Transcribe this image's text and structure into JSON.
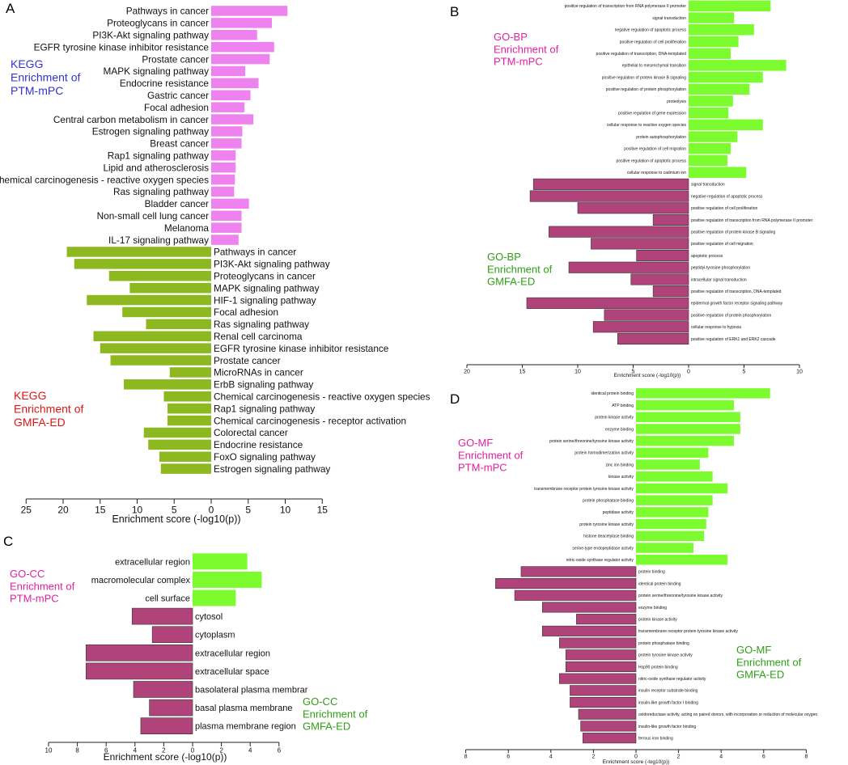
{
  "colors": {
    "kegg_pos": "#ee82ee",
    "kegg_neg": "#8db820",
    "go_pos": "#7cfc2e",
    "go_neg": "#b0447a",
    "label_blue": "#3333cc",
    "label_red": "#e01515",
    "label_magenta": "#e020a0",
    "label_green": "#2f9e14"
  },
  "chart_data": [
    {
      "panel": "A",
      "type": "bar",
      "orientation": "horizontal-diverging",
      "xlabel": "Enrichment score (-log10(p))",
      "xticks": [
        "25",
        "20",
        "15",
        "10",
        "5",
        "0",
        "5",
        "10",
        "15"
      ],
      "xlim": [
        -25,
        15
      ],
      "groups": [
        {
          "name": "KEGG Enrichment of PTM-mPC",
          "lines": [
            "KEGG",
            "Enrichment of",
            "PTM-mPC"
          ],
          "side": "positive",
          "categories": [
            "Pathways in cancer",
            "Proteoglycans in cancer",
            "PI3K-Akt signaling pathway",
            "EGFR tyrosine kinase inhibitor resistance",
            "Prostate cancer",
            "MAPK signaling pathway",
            "Endocrine resistance",
            "Gastric cancer",
            "Focal adhesion",
            "Central carbon metabolism in cancer",
            "Estrogen signaling pathway",
            "Breast cancer",
            "Rap1 signaling pathway",
            "Lipid and atherosclerosis",
            "Chemical carcinogenesis - reactive oxygen species",
            "Ras signaling pathway",
            "Bladder cancer",
            "Non-small cell lung cancer",
            "Melanoma",
            "IL-17 signaling pathway"
          ],
          "values": [
            10.3,
            8.2,
            6.2,
            8.5,
            7.9,
            4.6,
            6.4,
            5.3,
            4.5,
            5.7,
            4.2,
            4.1,
            3.3,
            3.3,
            3.2,
            3.1,
            5.1,
            4.1,
            4.1,
            3.7
          ]
        },
        {
          "name": "KEGG Enrichment of GMFA-ED",
          "lines": [
            "KEGG",
            "Enrichment of",
            "GMFA-ED"
          ],
          "side": "negative",
          "categories": [
            "Pathways in cancer",
            "PI3K-Akt signaling pathway",
            "Proteoglycans in cancer",
            "MAPK signaling pathway",
            "HIF-1 signaling pathway",
            "Focal adhesion",
            "Ras signaling pathway",
            "Renal cell carcinoma",
            "EGFR tyrosine kinase inhibitor resistance",
            "Prostate cancer",
            "MicroRNAs in cancer",
            "ErbB signaling pathway",
            "Chemical carcinogenesis - reactive oxygen species",
            "Rap1 signaling pathway",
            "Chemical carcinogenesis - receptor activation",
            "Colorectal cancer",
            "Endocrine resistance",
            "FoxO signaling pathway",
            "Estrogen signaling pathway"
          ],
          "values": [
            19.5,
            18.5,
            13.8,
            11.0,
            16.8,
            12.0,
            8.8,
            15.9,
            15.0,
            13.6,
            5.6,
            11.8,
            6.4,
            5.9,
            5.9,
            9.1,
            8.5,
            7.0,
            6.8
          ]
        }
      ]
    },
    {
      "panel": "B",
      "type": "bar",
      "orientation": "horizontal-diverging",
      "xlabel": "Enrichment score (-log10(p))",
      "xticks": [
        "20",
        "15",
        "10",
        "5",
        "0",
        "5",
        "10"
      ],
      "xlim": [
        -20,
        10
      ],
      "groups": [
        {
          "name": "GO-BP Enrichment of PTM-mPC",
          "lines": [
            "GO-BP",
            "Enrichment of",
            "PTM-mPC"
          ],
          "side": "positive",
          "categories": [
            "positive regulation of transcription from RNA polymerase II promoter",
            "signal transduction",
            "negative regulation of apoptotic process",
            "positive regulation of cell proliferation",
            "positive regulation of transcription, DNA-templated",
            "epithelial to mesenchymal transition",
            "positive regulation of protein kinase B signaling",
            "positive regulation of protein phosphorylation",
            "proteolysis",
            "positive regulation of gene expression",
            "cellular response to reactive oxygen species",
            "protein autophosphorylation",
            "positive regulation of cell migration",
            "positive regulation of apoptotic process",
            "cellular response to cadmium ion"
          ],
          "values": [
            7.4,
            4.1,
            5.9,
            4.5,
            3.8,
            8.8,
            6.7,
            5.5,
            4.0,
            3.6,
            6.7,
            4.4,
            3.8,
            3.5,
            5.2
          ]
        },
        {
          "name": "GO-BP Enrichment of GMFA-ED",
          "lines": [
            "GO-BP",
            "Enrichment of",
            "GMFA-ED"
          ],
          "side": "negative",
          "categories": [
            "signal transduction",
            "negative regulation of apoptotic process",
            "positive regulation of cell proliferation",
            "positive regulation of transcription from RNA polymerase II promoter",
            "positive regulation of protein kinase B signaling",
            "positive regulation of cell migration",
            "apoptotic process",
            "peptidyl-tyrosine phosphorylation",
            "intracellular signal transduction",
            "positive regulation of transcription, DNA-templated",
            "epidermal growth factor receptor signaling pathway",
            "positive regulation of protein phosphorylation",
            "cellular response to hypoxia",
            "positive regulation of ERK1 and ERK2 cascade"
          ],
          "values": [
            14.0,
            14.3,
            10.0,
            3.2,
            12.6,
            8.8,
            4.7,
            10.8,
            5.2,
            3.2,
            14.6,
            7.6,
            8.6,
            6.4
          ]
        }
      ]
    },
    {
      "panel": "C",
      "type": "bar",
      "orientation": "horizontal-diverging",
      "xlabel": "Enrichment score (-log10(p))",
      "xticks": [
        "10",
        "8",
        "6",
        "4",
        "2",
        "0",
        "2",
        "4",
        "6"
      ],
      "xlim": [
        -10,
        6
      ],
      "groups": [
        {
          "name": "GO-CC Enrichment of PTM-mPC",
          "lines": [
            "GO-CC",
            "Enrichment of",
            "PTM-mPC"
          ],
          "side": "positive",
          "categories": [
            "extracellular region",
            "macromolecular complex",
            "cell surface"
          ],
          "values": [
            3.8,
            4.8,
            3.0
          ]
        },
        {
          "name": "GO-CC Enrichment of GMFA-ED",
          "lines": [
            "GO-CC",
            "Enrichment of",
            "GMFA-ED"
          ],
          "side": "negative",
          "categories": [
            "cytosol",
            "cytoplasm",
            "extracellular region",
            "extracellular space",
            "basolateral plasma membrar",
            "basal plasma membrane",
            "plasma membrane region"
          ],
          "values": [
            4.2,
            2.8,
            7.4,
            7.4,
            4.1,
            3.0,
            3.6
          ]
        }
      ]
    },
    {
      "panel": "D",
      "type": "bar",
      "orientation": "horizontal-diverging",
      "xlabel": "Enrichment score (-log10(p))",
      "xticks": [
        "8",
        "6",
        "4",
        "2",
        "0",
        "2",
        "4",
        "6",
        "8"
      ],
      "xlim": [
        -8,
        8
      ],
      "groups": [
        {
          "name": "GO-MF Enrichment of PTM-mPC",
          "lines": [
            "GO-MF",
            "Enrichment of",
            "PTM-mPC"
          ],
          "side": "positive",
          "categories": [
            "identical protein binding",
            "ATP binding",
            "protein kinase activity",
            "enzyme binding",
            "protein serine/threonine/tyrosine kinase activity",
            "protein homodimerization activity",
            "zinc ion binding",
            "kinase activity",
            "transmembrane receptor protein tyrosine kinase activity",
            "protein phosphatase binding",
            "peptidase activity",
            "protein tyrosine kinase activity",
            "histone deacetylase binding",
            "serine-type endopeptidase activity",
            "nitric-oxide synthase regulator activity"
          ],
          "values": [
            6.3,
            4.6,
            4.9,
            4.9,
            4.6,
            3.4,
            3.0,
            3.6,
            4.3,
            3.6,
            3.4,
            3.3,
            3.2,
            2.7,
            4.3
          ]
        },
        {
          "name": "GO-MF Enrichment of GMFA-ED",
          "lines": [
            "GO-MF",
            "Enrichment of",
            "GMFA-ED"
          ],
          "side": "negative",
          "categories": [
            "protein binding",
            "identical protein binding",
            "protein serine/threonine/tyrosine kinase activity",
            "enzyme binding",
            "protein kinase activity",
            "transmembrane receptor protein tyrosine kinase activity",
            "protein phosphatase binding",
            "protein tyrosine kinase activity",
            "Hsp90 protein binding",
            "nitric-oxide synthase regulator activity",
            "insulin receptor substrate binding",
            "insulin-like growth factor I binding",
            "oxidoreductase activity, acting on paired donors, with incorporation or reduction of molecular oxygen",
            "insulin-like growth factor binding",
            "ferrous iron binding"
          ],
          "values": [
            5.4,
            6.6,
            5.7,
            4.4,
            2.8,
            4.4,
            3.6,
            3.3,
            3.3,
            3.6,
            3.1,
            3.1,
            2.7,
            2.6,
            2.5
          ]
        }
      ]
    }
  ]
}
